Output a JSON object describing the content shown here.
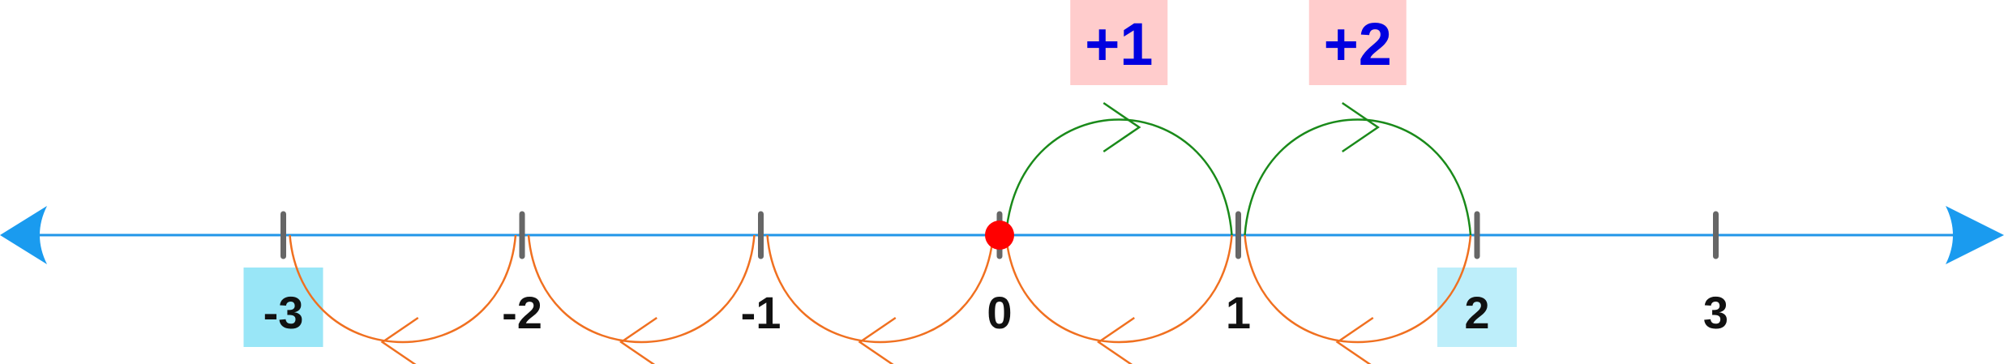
{
  "number_line": {
    "ticks": [
      {
        "value": -3,
        "label": "-3",
        "highlighted": true
      },
      {
        "value": -2,
        "label": "-2",
        "highlighted": false
      },
      {
        "value": -1,
        "label": "-1",
        "highlighted": false
      },
      {
        "value": 0,
        "label": "0",
        "highlighted": false
      },
      {
        "value": 1,
        "label": "1",
        "highlighted": false
      },
      {
        "value": 2,
        "label": "2",
        "highlighted": true
      },
      {
        "value": 3,
        "label": "3",
        "highlighted": false
      }
    ],
    "start_point": 0
  },
  "jumps_forward": [
    {
      "from": 0,
      "to": 1,
      "label": "+1"
    },
    {
      "from": 1,
      "to": 2,
      "label": "+2"
    }
  ],
  "jumps_backward": [
    {
      "from": 2,
      "to": 1
    },
    {
      "from": 1,
      "to": 0
    },
    {
      "from": 0,
      "to": -1
    },
    {
      "from": -1,
      "to": -2
    },
    {
      "from": -2,
      "to": -3
    }
  ],
  "colors": {
    "axis": "#2196e8",
    "arrowhead": "#1a9bef",
    "tick": "#666666",
    "start_dot": "#ff0000",
    "forward_arc": "#1a8a1a",
    "backward_arc": "#f07020",
    "label_box": "#ffcccc",
    "label_text": "#0000e0",
    "highlight_box_dark": "#99e6f7",
    "highlight_box_light": "#bdeefa",
    "highlight_text": "#1f5a70"
  }
}
